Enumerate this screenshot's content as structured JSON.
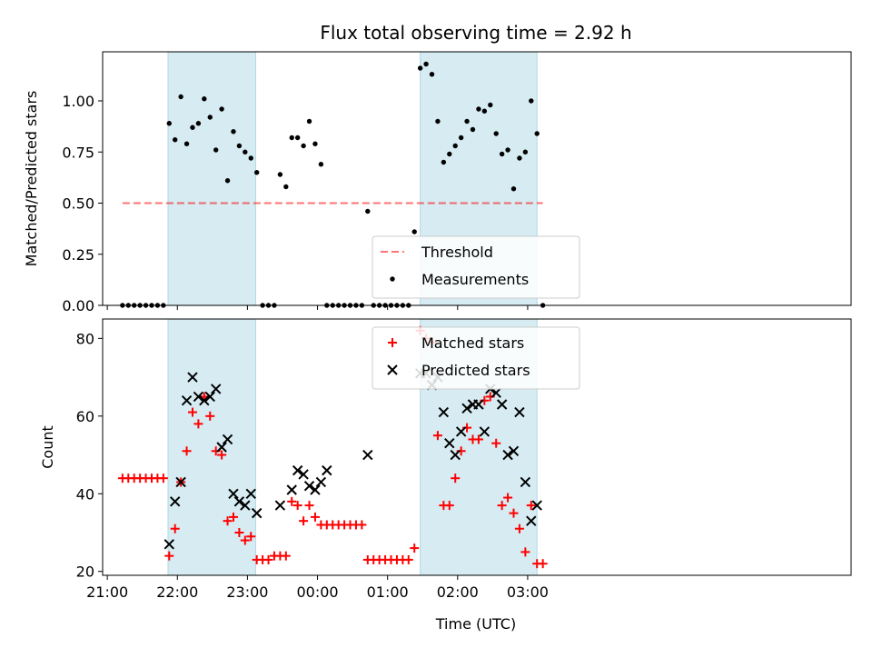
{
  "chart_data": {
    "title": "Flux total observing time = 2.92 h",
    "xlabel": "Time (UTC)",
    "x_tick_labels": [
      "21:00",
      "22:00",
      "23:00",
      "00:00",
      "01:00",
      "02:00",
      "03:00"
    ],
    "colors": {
      "band": "#add8e6",
      "threshold": "#ff0000",
      "matched": "#ff0000",
      "predicted": "#000000"
    },
    "bands": [
      [
        "21:52",
        "23:07"
      ],
      [
        "01:28",
        "03:08"
      ]
    ],
    "panels": [
      {
        "type": "scatter",
        "ylabel": "Matched/Predicted stars",
        "ylim": [
          0,
          1.24
        ],
        "y_ticks": [
          "0.00",
          "0.25",
          "0.50",
          "0.75",
          "1.00"
        ],
        "threshold": {
          "label": "Threshold",
          "value": 0.5,
          "x_range": [
            "21:13",
            "03:13"
          ]
        },
        "legend": {
          "position": "lower-center",
          "entries": [
            "Threshold",
            "Measurements"
          ]
        },
        "series": [
          {
            "name": "Measurements",
            "marker": "dot",
            "x": [
              "21:13",
              "21:18",
              "21:23",
              "21:28",
              "21:33",
              "21:38",
              "21:43",
              "21:48",
              "21:53",
              "21:58",
              "22:03",
              "22:08",
              "22:13",
              "22:18",
              "22:23",
              "22:28",
              "22:33",
              "22:38",
              "22:43",
              "22:48",
              "22:53",
              "22:58",
              "23:03",
              "23:08",
              "23:13",
              "23:18",
              "23:23",
              "23:28",
              "23:33",
              "23:38",
              "23:43",
              "23:48",
              "23:53",
              "23:58",
              "00:03",
              "00:08",
              "00:13",
              "00:18",
              "00:23",
              "00:28",
              "00:33",
              "00:38",
              "00:43",
              "00:48",
              "00:53",
              "00:58",
              "01:03",
              "01:08",
              "01:13",
              "01:18",
              "01:23",
              "01:28",
              "01:33",
              "01:38",
              "01:43",
              "01:48",
              "01:53",
              "01:58",
              "02:03",
              "02:08",
              "02:13",
              "02:18",
              "02:23",
              "02:28",
              "02:33",
              "02:38",
              "02:43",
              "02:48",
              "02:53",
              "02:58",
              "03:03",
              "03:08",
              "03:13"
            ],
            "y": [
              0,
              0,
              0,
              0,
              0,
              0,
              0,
              0,
              0.89,
              0.81,
              1.02,
              0.79,
              0.87,
              0.89,
              1.01,
              0.92,
              0.76,
              0.96,
              0.61,
              0.85,
              0.78,
              0.75,
              0.72,
              0.65,
              0,
              0,
              0,
              0.64,
              0.58,
              0.82,
              0.82,
              0.78,
              0.9,
              0.79,
              0.69,
              0,
              0,
              0,
              0,
              0,
              0,
              0,
              0.46,
              0,
              0,
              0,
              0,
              0,
              0,
              0,
              0.36,
              1.16,
              1.18,
              1.13,
              0.9,
              0.7,
              0.74,
              0.78,
              0.82,
              0.9,
              0.86,
              0.96,
              0.95,
              0.98,
              0.84,
              0.74,
              0.76,
              0.57,
              0.72,
              0.75,
              1.0,
              0.84,
              0
            ]
          }
        ]
      },
      {
        "type": "scatter",
        "ylabel": "Count",
        "ylim": [
          19,
          85
        ],
        "y_ticks": [
          "20",
          "40",
          "60",
          "80"
        ],
        "legend": {
          "position": "upper-center",
          "entries": [
            "Matched stars",
            "Predicted stars"
          ]
        },
        "series": [
          {
            "name": "Matched stars",
            "marker": "plus",
            "x": [
              "21:13",
              "21:18",
              "21:23",
              "21:28",
              "21:33",
              "21:38",
              "21:43",
              "21:48",
              "21:53",
              "21:58",
              "22:03",
              "22:08",
              "22:13",
              "22:18",
              "22:23",
              "22:28",
              "22:33",
              "22:38",
              "22:43",
              "22:48",
              "22:53",
              "22:58",
              "23:03",
              "23:08",
              "23:13",
              "23:18",
              "23:23",
              "23:28",
              "23:33",
              "23:38",
              "23:43",
              "23:48",
              "23:53",
              "23:58",
              "00:03",
              "00:08",
              "00:13",
              "00:18",
              "00:23",
              "00:28",
              "00:33",
              "00:38",
              "00:43",
              "00:48",
              "00:53",
              "00:58",
              "01:03",
              "01:08",
              "01:13",
              "01:18",
              "01:23",
              "01:28",
              "01:33",
              "01:38",
              "01:43",
              "01:48",
              "01:53",
              "01:58",
              "02:03",
              "02:08",
              "02:13",
              "02:18",
              "02:23",
              "02:28",
              "02:33",
              "02:38",
              "02:43",
              "02:48",
              "02:53",
              "02:58",
              "03:03",
              "03:08",
              "03:13"
            ],
            "y": [
              44,
              44,
              44,
              44,
              44,
              44,
              44,
              44,
              24,
              31,
              43,
              51,
              61,
              58,
              65,
              60,
              51,
              50,
              33,
              34,
              30,
              28,
              29,
              23,
              23,
              23,
              24,
              24,
              24,
              38,
              37,
              33,
              37,
              34,
              32,
              32,
              32,
              32,
              32,
              32,
              32,
              32,
              23,
              23,
              23,
              23,
              23,
              23,
              23,
              23,
              26,
              82,
              80,
              79,
              55,
              37,
              37,
              44,
              51,
              57,
              54,
              54,
              64,
              65,
              53,
              37,
              39,
              35,
              31,
              25,
              37,
              22,
              22
            ]
          },
          {
            "name": "Predicted stars",
            "marker": "x",
            "x": [
              "21:53",
              "21:58",
              "22:03",
              "22:08",
              "22:13",
              "22:18",
              "22:23",
              "22:28",
              "22:33",
              "22:38",
              "22:43",
              "22:48",
              "22:53",
              "22:58",
              "23:03",
              "23:08",
              "23:28",
              "23:38",
              "23:43",
              "23:48",
              "23:53",
              "23:58",
              "00:03",
              "00:08",
              "00:43",
              "01:28",
              "01:33",
              "01:38",
              "01:43",
              "01:48",
              "01:53",
              "01:58",
              "02:03",
              "02:08",
              "02:13",
              "02:18",
              "02:23",
              "02:28",
              "02:33",
              "02:38",
              "02:43",
              "02:48",
              "02:53",
              "02:58",
              "03:03",
              "03:08"
            ],
            "y": [
              27,
              38,
              43,
              64,
              70,
              65,
              64,
              65,
              67,
              52,
              54,
              40,
              38,
              37,
              40,
              35,
              37,
              41,
              46,
              45,
              42,
              41,
              43,
              46,
              50,
              71,
              71,
              68,
              70,
              61,
              53,
              50,
              56,
              62,
              63,
              63,
              56,
              67,
              66,
              63,
              50,
              51,
              61,
              43,
              33,
              37
            ]
          }
        ]
      }
    ]
  }
}
